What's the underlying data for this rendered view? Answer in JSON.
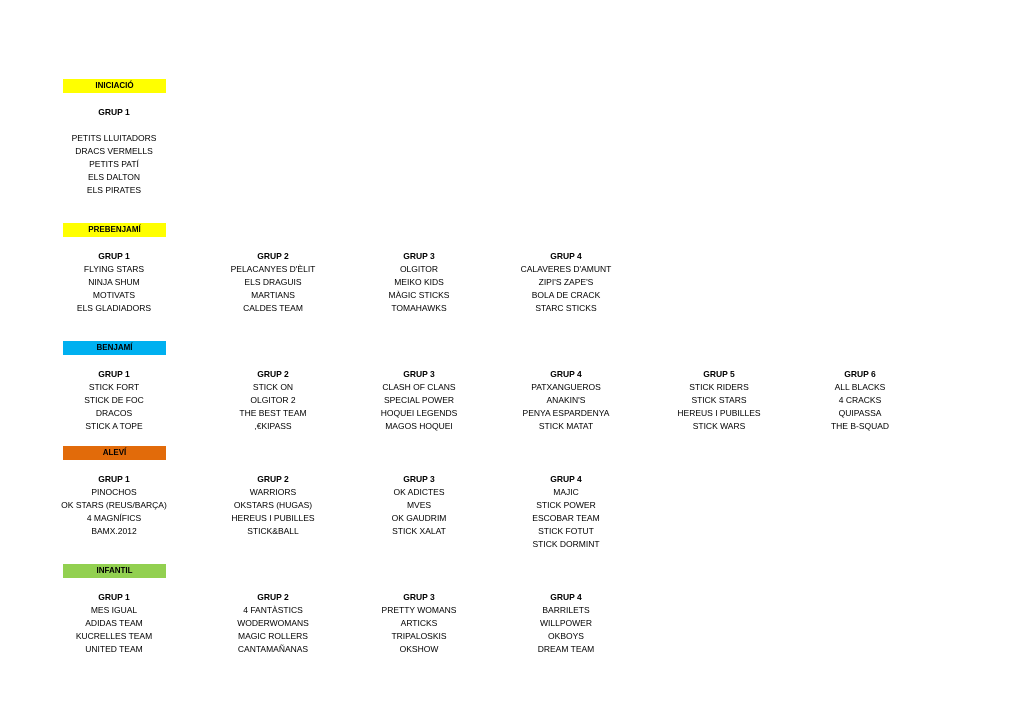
{
  "sections": [
    {
      "label": "INICIACIÓ",
      "color": "#ffff00",
      "groups": [
        {
          "title": "GRUP 1",
          "teams": [
            "PETITS LLUITADORS",
            "DRACS VERMELLS",
            "PETITS PATÍ",
            "ELS DALTON",
            "ELS PIRATES"
          ]
        }
      ]
    },
    {
      "label": "PREBENJAMÍ",
      "color": "#ffff00",
      "groups": [
        {
          "title": "GRUP 1",
          "teams": [
            "FLYING STARS",
            "NINJA SHUM",
            "MOTIVATS",
            "ELS GLADIADORS"
          ]
        },
        {
          "title": "GRUP 2",
          "teams": [
            "PELACANYES D'ÈLIT",
            "ELS DRAGUIS",
            "MARTIANS",
            "CALDES TEAM"
          ]
        },
        {
          "title": "GRUP 3",
          "teams": [
            "OLGITOR",
            "MEIKO KIDS",
            "MÀGIC STICKS",
            "TOMAHAWKS"
          ]
        },
        {
          "title": "GRUP 4",
          "teams": [
            "CALAVERES D'AMUNT",
            "ZIPI'S ZAPE'S",
            "BOLA DE CRACK",
            "STARC STICKS"
          ]
        }
      ]
    },
    {
      "label": "BENJAMÍ",
      "color": "#00b0f0",
      "groups": [
        {
          "title": "GRUP 1",
          "teams": [
            "STICK FORT",
            "STICK DE FOC",
            "DRACOS",
            "STICK A TOPE"
          ]
        },
        {
          "title": "GRUP 2",
          "teams": [
            "STICK ON",
            "OLGITOR 2",
            "THE BEST TEAM",
            ",€KIPASS"
          ]
        },
        {
          "title": "GRUP 3",
          "teams": [
            "CLASH OF CLANS",
            "SPECIAL POWER",
            "HOQUEI LEGENDS",
            "MAGOS HOQUEI"
          ]
        },
        {
          "title": "GRUP 4",
          "teams": [
            "PATXANGUEROS",
            "ANAKIN'S",
            "PENYA ESPARDENYA",
            "STICK MATAT"
          ]
        },
        {
          "title": "GRUP 5",
          "teams": [
            "STICK RIDERS",
            "STICK STARS",
            "HEREUS I PUBILLES",
            "STICK WARS"
          ]
        },
        {
          "title": "GRUP 6",
          "teams": [
            "ALL BLACKS",
            "4 CRACKS",
            "QUIPASSA",
            "THE B-SQUAD"
          ]
        }
      ]
    },
    {
      "label": "ALEVÍ",
      "color": "#e26b0a",
      "groups": [
        {
          "title": "GRUP 1",
          "teams": [
            "PINOCHOS",
            "OK STARS (REUS/BARÇA)",
            "4 MAGNÍFICS",
            "BAMX.2012"
          ]
        },
        {
          "title": "GRUP 2",
          "teams": [
            "WARRIORS",
            "OKSTARS (HUGAS)",
            "HEREUS I PUBILLES",
            "STICK&BALL"
          ]
        },
        {
          "title": "GRUP 3",
          "teams": [
            "OK ADICTES",
            "MVES",
            "OK GAUDRIM",
            "STICK XALAT"
          ]
        },
        {
          "title": "GRUP 4",
          "teams": [
            "MAJIC",
            "STICK POWER",
            "ESCOBAR TEAM",
            "STICK FOTUT",
            "STICK DORMINT"
          ]
        }
      ]
    },
    {
      "label": "INFANTIL",
      "color": "#92d050",
      "groups": [
        {
          "title": "GRUP 1",
          "teams": [
            "MES IGUAL",
            "ADIDAS TEAM",
            "KUCRELLES TEAM",
            "UNITED TEAM"
          ]
        },
        {
          "title": "GRUP 2",
          "teams": [
            "4 FANTÀSTICS",
            "WODERWOMANS",
            "MAGIC ROLLERS",
            "CANTAMAÑANAS"
          ]
        },
        {
          "title": "GRUP 3",
          "teams": [
            "PRETTY WOMANS",
            "ARTICKS",
            "TRIPALOSKIS",
            "OKSHOW"
          ]
        },
        {
          "title": "GRUP 4",
          "teams": [
            "BARRILETS",
            "WILLPOWER",
            "OKBOYS",
            "DREAM TEAM"
          ]
        }
      ]
    }
  ]
}
